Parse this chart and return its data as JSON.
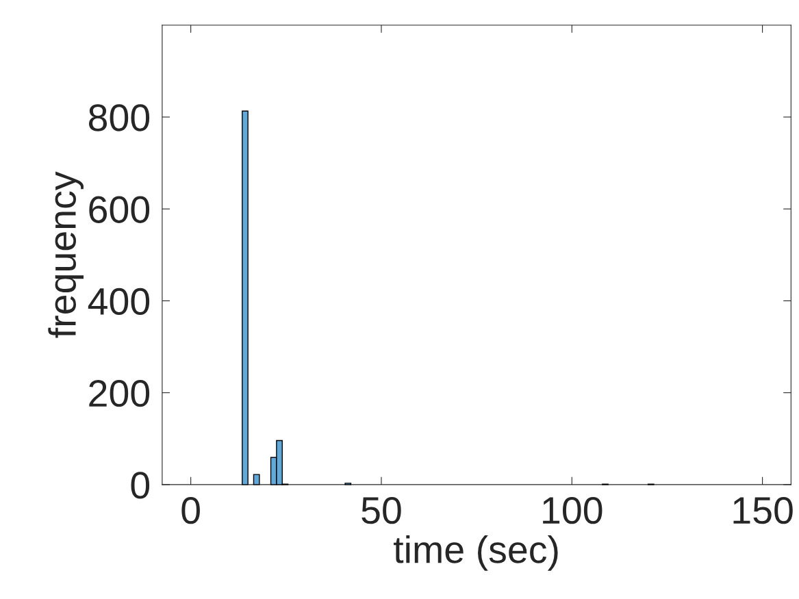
{
  "chart_data": {
    "type": "histogram",
    "xlabel": "time (sec)",
    "ylabel": "frequency",
    "color": "#62a8d8",
    "bins": [
      13.5,
      15,
      16.5,
      18,
      19.5,
      21,
      22.5,
      24,
      25.5,
      27,
      28.5,
      30,
      31.5,
      33,
      34.5,
      36,
      37.5,
      39,
      40.5,
      42,
      43.5,
      45,
      46.5,
      48,
      49.5,
      51,
      52.5,
      54,
      55.5,
      57,
      58.5,
      60,
      61.5,
      63,
      64.5,
      66,
      67.5,
      69,
      70.5,
      72,
      73.5,
      75,
      76.5,
      78,
      79.5,
      81,
      82.5,
      84,
      85.5,
      87,
      88.5,
      90,
      91.5,
      93,
      94.5,
      96,
      97.5,
      99,
      100.5,
      102,
      103.5,
      105,
      106.5,
      108,
      109.5,
      111,
      112.5,
      114,
      115.5,
      117,
      118.5,
      120,
      121.5
    ],
    "values": [
      813,
      0,
      22,
      0,
      0,
      59,
      96,
      1,
      0,
      0,
      0,
      0,
      0,
      0,
      0,
      0,
      0,
      0,
      3,
      0,
      0,
      0,
      0,
      0,
      0,
      0,
      0,
      0,
      0,
      0,
      0,
      0,
      0,
      0,
      0,
      0,
      0,
      0,
      0,
      0,
      0,
      0,
      0,
      0,
      0,
      0,
      0,
      0,
      0,
      0,
      0,
      0,
      0,
      0,
      0,
      0,
      0,
      0,
      0,
      0,
      0,
      0,
      0,
      1,
      0,
      0,
      0,
      0,
      0,
      0,
      0,
      1
    ],
    "xlim": [
      -7.5,
      157.5
    ],
    "xticks": [
      0,
      50,
      100,
      150
    ],
    "ylim": [
      0,
      1000
    ],
    "yticks": [
      0,
      200,
      400,
      600,
      800
    ],
    "grid": false
  }
}
